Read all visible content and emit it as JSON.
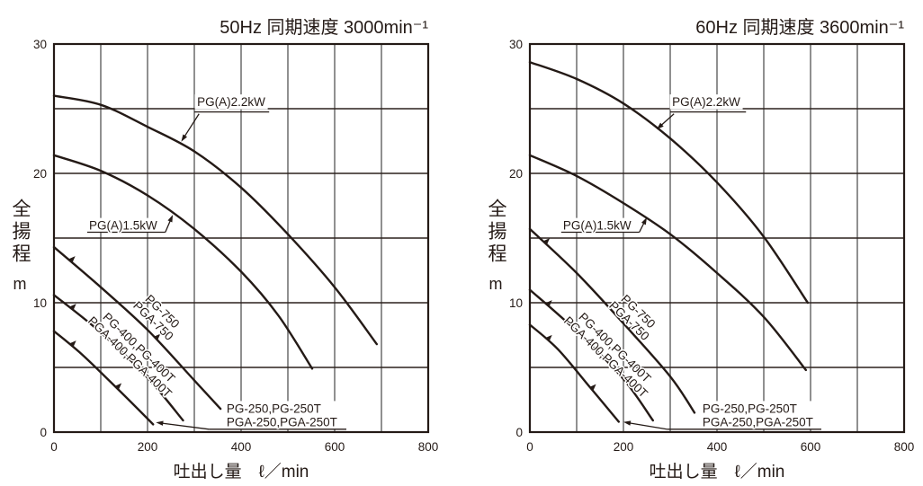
{
  "page": {
    "background": "#ffffff"
  },
  "colors": {
    "ink": "#241a16",
    "grid_horizontal": "#2c211d",
    "grid_vertical": "#8a8a8a",
    "background": "#ffffff"
  },
  "chart_data": [
    {
      "id": "50hz",
      "type": "line",
      "title": "50Hz 同期速度 3000min⁻¹",
      "xlabel": "吐出し量　ℓ／min",
      "ylabel": "全揚程",
      "ylabel_unit": "m",
      "xlim": [
        0,
        800
      ],
      "ylim": [
        0,
        30
      ],
      "x_grid_step": 100,
      "y_grid_step": 5,
      "x_ticks": [
        "0",
        "200",
        "400",
        "600",
        "800"
      ],
      "y_ticks": [
        "0",
        "10",
        "20",
        "30"
      ],
      "series": [
        {
          "name": "PG(A)2.2kW",
          "points": [
            [
              0,
              26.0
            ],
            [
              100,
              25.3
            ],
            [
              200,
              23.6
            ],
            [
              300,
              21.7
            ],
            [
              400,
              18.9
            ],
            [
              500,
              15.3
            ],
            [
              600,
              11.2
            ],
            [
              690,
              6.8
            ]
          ],
          "arrows": []
        },
        {
          "name": "PG(A)1.5kW",
          "points": [
            [
              0,
              21.4
            ],
            [
              100,
              20.2
            ],
            [
              200,
              18.3
            ],
            [
              300,
              15.7
            ],
            [
              400,
              12.4
            ],
            [
              480,
              9.0
            ],
            [
              552,
              4.9
            ]
          ],
          "arrows": []
        },
        {
          "name": "PG-750, PGA-750",
          "points": [
            [
              0,
              14.3
            ],
            [
              100,
              11.2
            ],
            [
              200,
              7.9
            ],
            [
              300,
              4.0
            ],
            [
              356,
              1.8
            ]
          ],
          "arrows": [
            38,
            220
          ]
        },
        {
          "name": "PG-400, PG-400T, PGA-400, PGA-400T",
          "points": [
            [
              0,
              10.6
            ],
            [
              100,
              7.7
            ],
            [
              200,
              4.2
            ],
            [
              276,
              0.9
            ]
          ],
          "arrows": [
            40,
            172
          ]
        },
        {
          "name": "PG-250, PG-250T, PGA-250, PGA-250T",
          "points": [
            [
              0,
              7.8
            ],
            [
              60,
              6.0
            ],
            [
              140,
              3.2
            ],
            [
              212,
              0.6
            ]
          ],
          "arrows": [
            40,
            137
          ]
        }
      ],
      "annotations": [
        {
          "lines": [
            "PG(A)2.2kW"
          ],
          "x": 306,
          "y": 25.2,
          "rotate": 0,
          "align": "start",
          "bg": true,
          "underline": [
            300,
            460,
            24.75
          ],
          "leader": [
            310,
            24.6,
            272,
            22.45
          ]
        },
        {
          "lines": [
            "PG(A)1.5kW"
          ],
          "x": 75,
          "y": 15.65,
          "rotate": 0,
          "align": "start",
          "bg": true,
          "underline": [
            71,
            238,
            15.45
          ],
          "leader": [
            238,
            15.45,
            254,
            16.8
          ]
        },
        {
          "lines": [
            "PG-750",
            "PGA-750"
          ],
          "x": 223,
          "y": 9.0,
          "rotate": 44,
          "align": "middle",
          "bg": false
        },
        {
          "lines": [
            "PG-400,PG-400T",
            "PGA-400,PGA-400T"
          ],
          "x": 173,
          "y": 6.2,
          "rotate": 44,
          "align": "middle",
          "bg": false
        },
        {
          "lines": [
            "PG-250,PG-250T",
            "PGA-250,PGA-250T"
          ],
          "x": 369,
          "y": 1.5,
          "rotate": 0,
          "align": "start",
          "bg": true,
          "underline": [
            331,
            625,
            0.22
          ],
          "leader": [
            331,
            0.22,
            218,
            0.75
          ]
        }
      ]
    },
    {
      "id": "60hz",
      "type": "line",
      "title": "60Hz 同期速度 3600min⁻¹",
      "xlabel": "吐出し量　ℓ／min",
      "ylabel": "全揚程",
      "ylabel_unit": "m",
      "xlim": [
        0,
        800
      ],
      "ylim": [
        0,
        30
      ],
      "x_grid_step": 100,
      "y_grid_step": 5,
      "x_ticks": [
        "0",
        "200",
        "400",
        "600",
        "800"
      ],
      "y_ticks": [
        "0",
        "10",
        "20",
        "30"
      ],
      "series": [
        {
          "name": "PG(A)2.2kW",
          "points": [
            [
              0,
              28.6
            ],
            [
              100,
              27.3
            ],
            [
              200,
              25.4
            ],
            [
              300,
              22.7
            ],
            [
              400,
              19.3
            ],
            [
              500,
              15.1
            ],
            [
              594,
              10.0
            ]
          ],
          "arrows": []
        },
        {
          "name": "PG(A)1.5kW",
          "points": [
            [
              0,
              21.4
            ],
            [
              100,
              19.8
            ],
            [
              200,
              17.7
            ],
            [
              300,
              15.3
            ],
            [
              400,
              12.3
            ],
            [
              500,
              8.9
            ],
            [
              590,
              4.8
            ]
          ],
          "arrows": []
        },
        {
          "name": "PG-750, PGA-750",
          "points": [
            [
              0,
              15.7
            ],
            [
              100,
              12.3
            ],
            [
              200,
              8.4
            ],
            [
              300,
              4.3
            ],
            [
              352,
              1.5
            ]
          ],
          "arrows": [
            35,
            215
          ]
        },
        {
          "name": "PG-400, PG-400T, PGA-400, PGA-400T",
          "points": [
            [
              0,
              11.0
            ],
            [
              100,
              7.8
            ],
            [
              200,
              4.1
            ],
            [
              263,
              0.9
            ]
          ],
          "arrows": [
            40,
            168
          ]
        },
        {
          "name": "PG-250, PG-250T, PGA-250, PGA-250T",
          "points": [
            [
              0,
              8.3
            ],
            [
              60,
              6.4
            ],
            [
              130,
              3.4
            ],
            [
              190,
              0.8
            ]
          ],
          "arrows": [
            40,
            134
          ]
        }
      ],
      "annotations": [
        {
          "lines": [
            "PG(A)2.2kW"
          ],
          "x": 304,
          "y": 25.2,
          "rotate": 0,
          "align": "start",
          "bg": true,
          "underline": [
            300,
            462,
            24.75
          ],
          "leader": [
            308,
            24.6,
            271,
            23.4
          ]
        },
        {
          "lines": [
            "PG(A)1.5kW"
          ],
          "x": 71,
          "y": 15.65,
          "rotate": 0,
          "align": "start",
          "bg": true,
          "underline": [
            67,
            234,
            15.45
          ],
          "leader": [
            234,
            15.45,
            250,
            16.6
          ]
        },
        {
          "lines": [
            "PG-750",
            "PGA-750"
          ],
          "x": 223,
          "y": 9.0,
          "rotate": 44,
          "align": "middle",
          "bg": false
        },
        {
          "lines": [
            "PG-400,PG-400T",
            "PGA-400,PGA-400T"
          ],
          "x": 173,
          "y": 6.2,
          "rotate": 44,
          "align": "middle",
          "bg": false
        },
        {
          "lines": [
            "PG-250,PG-250T",
            "PGA-250,PGA-250T"
          ],
          "x": 369,
          "y": 1.5,
          "rotate": 0,
          "align": "start",
          "bg": true,
          "underline": [
            294,
            623,
            0.22
          ],
          "leader": [
            294,
            0.22,
            200,
            0.78
          ]
        }
      ]
    }
  ]
}
